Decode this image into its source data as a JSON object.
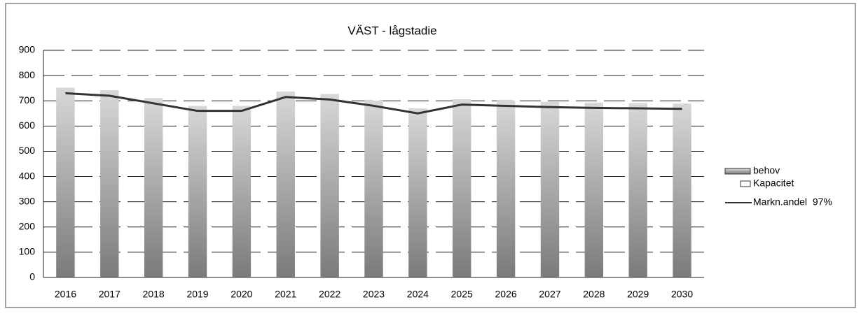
{
  "chart_data": {
    "type": "bar_line",
    "title": "VÄST - lågstadie",
    "categories": [
      "2016",
      "2017",
      "2018",
      "2019",
      "2020",
      "2021",
      "2022",
      "2023",
      "2024",
      "2025",
      "2026",
      "2027",
      "2028",
      "2029",
      "2030"
    ],
    "series": [
      {
        "name": "behov",
        "type": "bar",
        "color": "#9a9a9a",
        "values": [
          752,
          742,
          711,
          680,
          680,
          737,
          727,
          701,
          670,
          706,
          701,
          696,
          693,
          691,
          689
        ]
      },
      {
        "name": "Kapacitet",
        "type": "bar",
        "color": "#ffffff",
        "values": [
          null,
          null,
          null,
          null,
          null,
          null,
          null,
          null,
          null,
          null,
          null,
          null,
          null,
          null,
          null
        ]
      },
      {
        "name": "Markn.andel  97%",
        "type": "line",
        "color": "#333333",
        "values": [
          730,
          720,
          690,
          660,
          660,
          715,
          705,
          680,
          650,
          685,
          680,
          675,
          672,
          670,
          668
        ]
      }
    ],
    "ylim": [
      0,
      900
    ],
    "yticks": [
      0,
      100,
      200,
      300,
      400,
      500,
      600,
      700,
      800,
      900
    ],
    "grid": true,
    "legend": "right"
  }
}
